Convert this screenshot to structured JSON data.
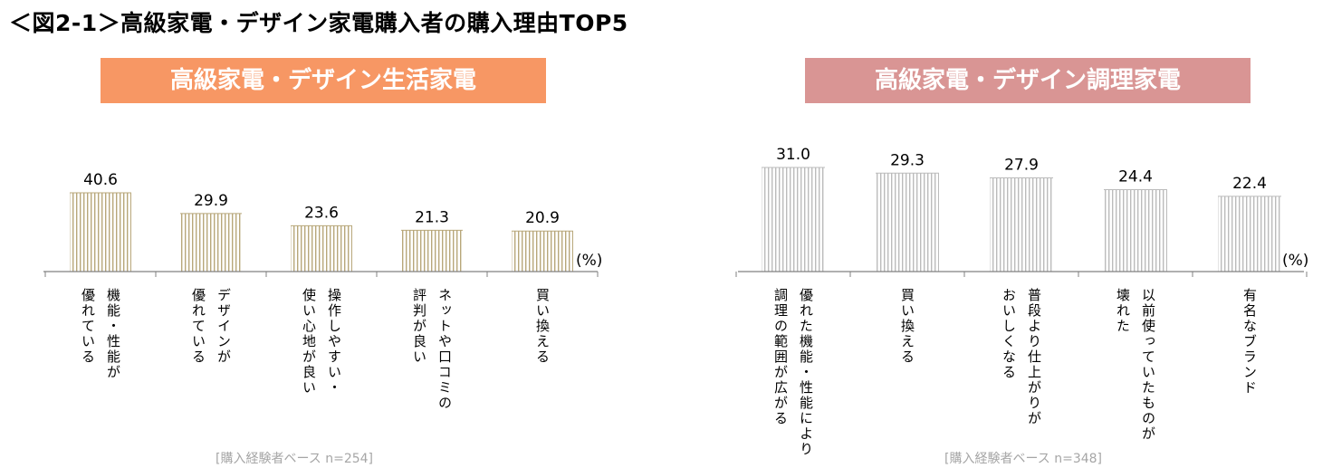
{
  "title": "＜図2-1＞高級家電・デザイン家電購入者の購入理由TOP5",
  "colors": {
    "left_header": "#F79764",
    "right_header": "#D99594",
    "left_bar_stripe": "#B8A77A",
    "right_bar_stripe": "#BBBBBB",
    "axis": "#808080",
    "base_text": "#A6A6A6"
  },
  "chart_data": [
    {
      "type": "bar",
      "title": "高級家電・デザイン生活家電",
      "unit": "(%)",
      "base_note": "[購入経験者ベース n=254]",
      "categories": [
        [
          "機能・性能が",
          "優れている"
        ],
        [
          "デザインが",
          "優れている"
        ],
        [
          "操作しやすい・",
          "使い心地が良い"
        ],
        [
          "ネットや口コミの",
          "評判が良い"
        ],
        [
          "買い換える"
        ]
      ],
      "values": [
        40.6,
        29.9,
        23.6,
        21.3,
        20.9
      ],
      "value_labels": [
        "40.6",
        "29.9",
        "23.6",
        "21.3",
        "20.9"
      ],
      "ylim": [
        0,
        45
      ],
      "grid": false
    },
    {
      "type": "bar",
      "title": "高級家電・デザイン調理家電",
      "unit": "(%)",
      "base_note": "[購入経験者ベース n=348]",
      "categories": [
        [
          "優れた機能・性能により",
          "調理の範囲が広がる"
        ],
        [
          "買い換える"
        ],
        [
          "普段より仕上がりが",
          "おいしくなる"
        ],
        [
          "以前使っていたものが",
          "壊れた"
        ],
        [
          "有名なブランド"
        ]
      ],
      "values": [
        31.0,
        29.3,
        27.9,
        24.4,
        22.4
      ],
      "value_labels": [
        "31.0",
        "29.3",
        "27.9",
        "24.4",
        "22.4"
      ],
      "ylim": [
        0,
        36
      ],
      "grid": false
    }
  ]
}
